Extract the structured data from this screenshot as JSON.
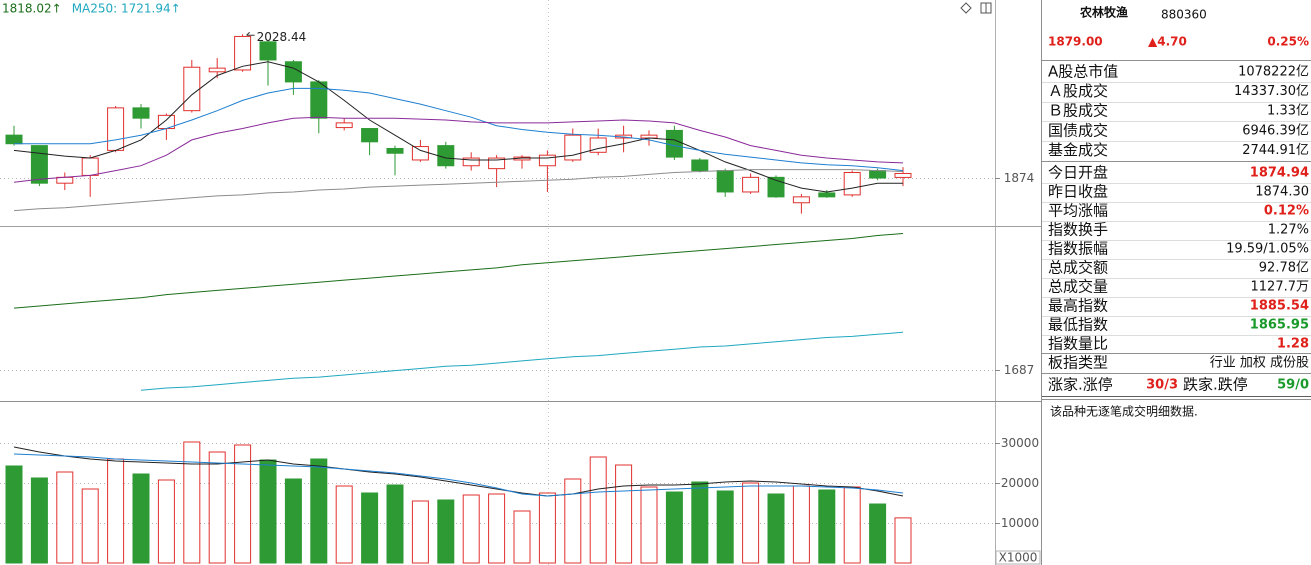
{
  "chart_data": [
    {
      "type": "candlestick",
      "legend": [
        {
          "text": "1818.02↑",
          "color": "#1a6e1a"
        },
        {
          "text": "MA250: 1721.94↑",
          "color": "#1fa8c0"
        }
      ],
      "annotation": "2028.44",
      "log_scale": true,
      "ylim": [
        1659,
        2067
      ],
      "yticks": [
        1687,
        1874
      ],
      "grid": true,
      "up_color": "#e0302c",
      "down_color": "#2e9a33",
      "open": [
        1919,
        1908,
        1869,
        1877,
        1903,
        1948,
        1926,
        1945,
        1987,
        1989,
        2020,
        1998,
        1976,
        1927,
        1926,
        1905,
        1893,
        1908,
        1887,
        1884,
        1893,
        1887,
        1893,
        1901,
        1916,
        1916,
        1924,
        1893,
        1882,
        1860,
        1875,
        1849,
        1859,
        1857,
        1882,
        1874.94
      ],
      "high": [
        1929,
        1908,
        1880,
        1898,
        1950,
        1952,
        1942,
        2000,
        2002,
        2028.44,
        2022,
        2000,
        1978,
        1937,
        1926,
        1908,
        1914,
        1912,
        1901,
        1898,
        1898,
        1903,
        1926,
        1926,
        1929,
        1924,
        1929,
        1895,
        1884,
        1879,
        1877,
        1858,
        1862,
        1882,
        1884,
        1885.54
      ],
      "low": [
        1908,
        1866,
        1862,
        1855,
        1901,
        1926,
        1914,
        1943,
        1980,
        1987,
        1972,
        1962,
        1921,
        1924,
        1898,
        1877,
        1891,
        1884,
        1882,
        1865,
        1884,
        1860,
        1891,
        1898,
        1901,
        1908,
        1893,
        1880,
        1855,
        1858,
        1854,
        1838,
        1854,
        1855,
        1872,
        1865.95
      ],
      "close": [
        1910,
        1869,
        1875,
        1895,
        1948,
        1937,
        1940,
        1992,
        1991,
        2026,
        2000,
        1976,
        1937,
        1932,
        1912,
        1900,
        1907,
        1887,
        1895,
        1895,
        1896,
        1898,
        1919,
        1916,
        1919,
        1919,
        1896,
        1882,
        1860,
        1875,
        1855,
        1855,
        1855,
        1880,
        1874.3,
        1879
      ],
      "lines": [
        {
          "color": "#222222",
          "values": [
            1903,
            1900,
            1897,
            1895,
            1903,
            1914,
            1935,
            1962,
            1983,
            1993,
            1998,
            1991,
            1976,
            1956,
            1935,
            1919,
            1903,
            1895,
            1893,
            1893,
            1895,
            1895,
            1898,
            1905,
            1910,
            1916,
            1914,
            1903,
            1891,
            1882,
            1872,
            1864,
            1860,
            1864,
            1869,
            1869
          ]
        },
        {
          "color": "#1e7fd0",
          "values": [
            1910,
            1910,
            1910,
            1910,
            1914,
            1919,
            1926,
            1935,
            1945,
            1956,
            1964,
            1969,
            1969,
            1967,
            1964,
            1958,
            1952,
            1945,
            1938,
            1929,
            1925,
            1922,
            1920,
            1919,
            1917,
            1914,
            1908,
            1903,
            1899,
            1896,
            1893,
            1890,
            1888,
            1887,
            1885,
            1882
          ]
        },
        {
          "color": "#8a2a9a",
          "values": [
            1870,
            1873,
            1875,
            1877,
            1882,
            1887,
            1898,
            1914,
            1921,
            1926,
            1932,
            1937,
            1938,
            1937,
            1937,
            1937,
            1936,
            1935,
            1933,
            1932,
            1932,
            1932,
            1933,
            1934,
            1935,
            1934,
            1932,
            1924,
            1917,
            1908,
            1903,
            1898,
            1895,
            1893,
            1891,
            1890
          ]
        },
        {
          "color": "#8c8c8c",
          "values": [
            1841,
            1843,
            1844,
            1846,
            1848,
            1850,
            1852,
            1854,
            1856,
            1857,
            1859,
            1860,
            1862,
            1863,
            1865,
            1866,
            1867,
            1868,
            1869,
            1870,
            1871,
            1872,
            1873,
            1875,
            1876,
            1878,
            1880,
            1881,
            1882,
            1883,
            1883,
            1883,
            1883,
            1883,
            1882,
            1881
          ]
        },
        {
          "color": "#1a6e1a",
          "values": [
            1745,
            1747,
            1749,
            1751,
            1753,
            1755,
            1758,
            1760,
            1762,
            1764,
            1766,
            1768,
            1770,
            1772,
            1774,
            1776,
            1778,
            1780,
            1782,
            1784,
            1787,
            1789,
            1791,
            1793,
            1795,
            1797,
            1799,
            1801,
            1803,
            1805,
            1807,
            1809,
            1811,
            1813,
            1816,
            1818.02
          ]
        },
        {
          "color": "#1fa8c0",
          "values": [
            null,
            null,
            null,
            null,
            null,
            1668,
            1670,
            1671,
            1673,
            1675,
            1677,
            1679,
            1680,
            1682,
            1684,
            1686,
            1688,
            1690,
            1691,
            1693,
            1695,
            1697,
            1699,
            1700,
            1702,
            1704,
            1706,
            1708,
            1709,
            1711,
            1713,
            1715,
            1717,
            1718,
            1720,
            1721.94
          ]
        }
      ]
    },
    {
      "type": "volume",
      "ylim": [
        0,
        39500
      ],
      "yticks": [
        10000,
        20000,
        30000
      ],
      "grid": true,
      "unit_label": "X1000",
      "values": [
        24250,
        21250,
        22750,
        18500,
        26000,
        22250,
        20750,
        30250,
        27750,
        29500,
        25750,
        21000,
        26000,
        19250,
        17500,
        19500,
        15500,
        15750,
        17000,
        17250,
        13000,
        17500,
        21000,
        26500,
        24500,
        19000,
        17750,
        20250,
        18000,
        20000,
        17250,
        19250,
        18250,
        19000,
        14750,
        11277
      ],
      "lines": [
        {
          "color": "#222222",
          "values": [
            29000,
            27750,
            26750,
            26000,
            25500,
            25250,
            25000,
            24750,
            24750,
            25250,
            25750,
            24750,
            24250,
            23500,
            22750,
            22250,
            21500,
            20500,
            19500,
            18500,
            17500,
            16750,
            17250,
            18500,
            19250,
            19500,
            19500,
            19750,
            20250,
            20500,
            20250,
            19750,
            19250,
            19000,
            18000,
            16750
          ]
        },
        {
          "color": "#1e7fd0",
          "values": [
            27250,
            27000,
            26750,
            26500,
            26000,
            25750,
            25500,
            25250,
            25000,
            24750,
            24500,
            24250,
            24000,
            23500,
            23000,
            22500,
            21750,
            21000,
            20000,
            18750,
            17250,
            16750,
            17250,
            17750,
            18000,
            18250,
            18500,
            18750,
            19000,
            19250,
            19250,
            19250,
            19000,
            18750,
            18250,
            17500
          ]
        }
      ]
    }
  ],
  "panel": {
    "name": "农林牧渔",
    "code": "880360",
    "price": "1879.00",
    "change": "▲4.70",
    "change_pct": "0.25%",
    "rows": [
      {
        "label": "A股总市值",
        "value": "1078222亿"
      },
      {
        "label": "Ａ股成交",
        "value": "14337.30亿"
      },
      {
        "label": "Ｂ股成交",
        "value": "1.33亿"
      },
      {
        "label": "国债成交",
        "value": "6946.39亿"
      },
      {
        "label": "基金成交",
        "value": "2744.91亿"
      },
      {
        "label": "今日开盘",
        "value": "1874.94",
        "color": "#e0201b"
      },
      {
        "label": "昨日收盘",
        "value": "1874.30"
      },
      {
        "label": "平均涨幅",
        "value": "0.12%",
        "color": "#e0201b"
      },
      {
        "label": "指数换手",
        "value": "1.27%"
      },
      {
        "label": "指数振幅",
        "value": "19.59/1.05%"
      },
      {
        "label": "总成交额",
        "value": "92.78亿"
      },
      {
        "label": "总成交量",
        "value": "1127.7万"
      },
      {
        "label": "最高指数",
        "value": "1885.54",
        "color": "#e0201b"
      },
      {
        "label": "最低指数",
        "value": "1865.95",
        "color": "#1a9a2a"
      },
      {
        "label": "指数量比",
        "value": "1.28",
        "color": "#e0201b"
      }
    ],
    "type_row": {
      "label": "板指类型",
      "value": "行业 加权 成份股"
    },
    "breadth": {
      "up_label": "涨家.涨停",
      "up_value": "30/3",
      "down_label": "跌家.跌停",
      "down_value": "59/0"
    },
    "note": "该品种无逐笔成交明细数据."
  }
}
